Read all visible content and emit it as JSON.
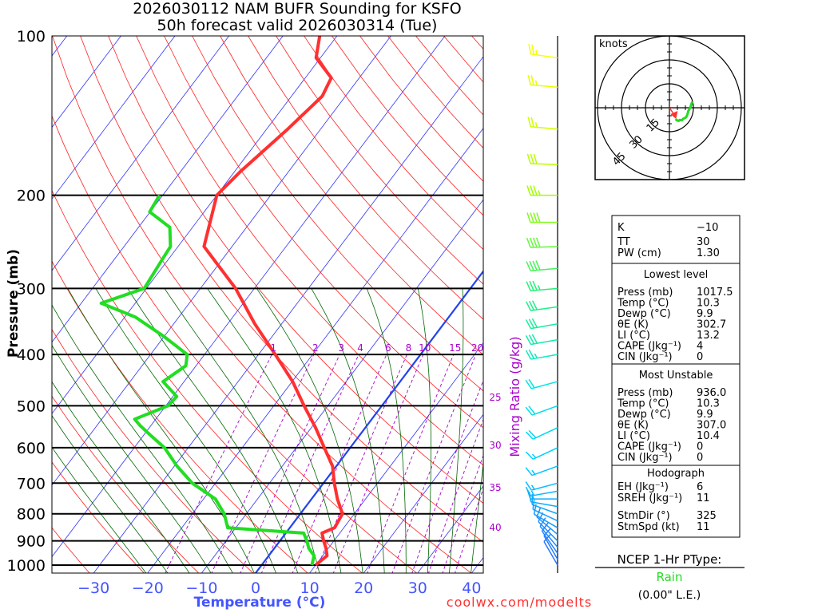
{
  "title": {
    "line1": "2026030112 NAM BUFR Sounding for KSFO",
    "line2": "50h forecast valid 2026030314 (Tue)"
  },
  "credit": "coolwx.com/modelts",
  "colors": {
    "temperature": "#ff3030",
    "dewpoint": "#22dd22",
    "isotherm": "#3030ff",
    "freezing": "#2244ee",
    "dry_adiabat": "#ff2020",
    "moist_adiabat": "#006600",
    "mixing_ratio": "#aa00cc",
    "axis_blue": "#4455ff"
  },
  "chart_data": {
    "type": "skew-t",
    "title": "2026030112 NAM BUFR Sounding for KSFO - 50h forecast valid 2026030314 (Tue)",
    "xlabel": "Temperature (°C)",
    "ylabel": "Pressure (mb)",
    "mixing_ratio_label": "Mixing Ratio (g/kg)",
    "pressure_ticks": [
      "100",
      "200",
      "300",
      "400",
      "500",
      "600",
      "700",
      "800",
      "900",
      "1000"
    ],
    "temperature_ticks": [
      "−30",
      "−20",
      "−10",
      "0",
      "10",
      "20",
      "30",
      "40"
    ],
    "temperature_tick_values": [
      -30,
      -20,
      -10,
      0,
      10,
      20,
      30,
      40
    ],
    "xlim": [
      -38,
      42
    ],
    "ylim": [
      1036,
      100
    ],
    "mixing_ratio_lines": [
      1,
      2,
      3,
      4,
      6,
      8,
      10,
      15,
      20,
      25,
      30,
      35,
      40
    ],
    "mixing_ratio_labels": [
      "1",
      "2",
      "3",
      "4",
      "6",
      "8",
      "10",
      "15",
      "20",
      "25",
      "30",
      "35",
      "40"
    ],
    "temperature_profile": {
      "pressure": [
        1000,
        960,
        930,
        900,
        870,
        850,
        800,
        750,
        700,
        650,
        600,
        550,
        500,
        450,
        400,
        350,
        300,
        250,
        200,
        180,
        150,
        130,
        120,
        110,
        100
      ],
      "temperature": [
        10.0,
        10.8,
        9.6,
        8.1,
        6.7,
        8.3,
        7.8,
        4.8,
        2.0,
        -0.7,
        -4.8,
        -9.2,
        -14.4,
        -19.9,
        -26.9,
        -35.0,
        -43.5,
        -55.2,
        -60.0,
        -58.9,
        -56.1,
        -54.3,
        -55.2,
        -60.8,
        -63.2
      ]
    },
    "dewpoint_profile": {
      "pressure": [
        1000,
        960,
        930,
        900,
        870,
        850,
        800,
        750,
        700,
        650,
        600,
        570,
        545,
        530,
        500,
        480,
        450,
        420,
        400,
        370,
        340,
        320,
        300,
        270,
        250,
        230,
        215,
        200
      ],
      "dewpoint": [
        9.3,
        8.4,
        6.4,
        5.0,
        3.3,
        -11.5,
        -14.1,
        -17.8,
        -24.3,
        -29.5,
        -34.4,
        -38.5,
        -42.0,
        -43.9,
        -39.6,
        -39.3,
        -43.9,
        -41.9,
        -43.2,
        -50.0,
        -58.0,
        -66.3,
        -60.4,
        -61.0,
        -61.4,
        -64.2,
        -70.1,
        -70.6
      ]
    },
    "freezing_isotherm_c": 0,
    "winds": {
      "pressure": [
        1000,
        975,
        950,
        925,
        900,
        875,
        850,
        825,
        800,
        775,
        750,
        725,
        700,
        650,
        600,
        550,
        500,
        450,
        400,
        375,
        350,
        325,
        300,
        275,
        250,
        225,
        200,
        175,
        150,
        125,
        110
      ],
      "direction": [
        330,
        330,
        325,
        320,
        315,
        310,
        300,
        295,
        290,
        280,
        270,
        260,
        255,
        250,
        245,
        245,
        250,
        255,
        260,
        260,
        260,
        262,
        265,
        265,
        268,
        270,
        270,
        272,
        275,
        275,
        278
      ],
      "speed": [
        8,
        9,
        10,
        10,
        11,
        11,
        12,
        12,
        12,
        12,
        13,
        14,
        15,
        16,
        17,
        18,
        20,
        22,
        25,
        28,
        30,
        32,
        35,
        38,
        40,
        40,
        35,
        30,
        25,
        25,
        25
      ]
    }
  },
  "hodograph": {
    "unit_label": "knots",
    "ring_labels": [
      "15",
      "30",
      "45"
    ],
    "ring_values": [
      15,
      30,
      45
    ]
  },
  "stats": {
    "indices": [
      {
        "label": "K",
        "value": "−10"
      },
      {
        "label": "TT",
        "value": "30"
      },
      {
        "label": "PW (cm)",
        "value": "1.30"
      }
    ],
    "lowest_level": {
      "title": "Lowest level",
      "rows": [
        {
          "label": "Press (mb)",
          "value": "1017.5"
        },
        {
          "label": "Temp (°C)",
          "value": "10.3"
        },
        {
          "label": "Dewp (°C)",
          "value": "9.9"
        },
        {
          "label": "θE (K)",
          "value": "302.7"
        },
        {
          "label": "LI (°C)",
          "value": "13.2"
        },
        {
          "label": "CAPE (Jkg⁻¹)",
          "value": "4"
        },
        {
          "label": "CIN (Jkg⁻¹)",
          "value": "0"
        }
      ]
    },
    "most_unstable": {
      "title": "Most Unstable",
      "rows": [
        {
          "label": "Press (mb)",
          "value": "936.0"
        },
        {
          "label": "Temp (°C)",
          "value": "10.3"
        },
        {
          "label": "Dewp (°C)",
          "value": "9.9"
        },
        {
          "label": "θE (K)",
          "value": "307.0"
        },
        {
          "label": "LI (°C)",
          "value": "10.4"
        },
        {
          "label": "CAPE (Jkg⁻¹)",
          "value": "0"
        },
        {
          "label": "CIN (Jkg⁻¹)",
          "value": "0"
        }
      ]
    },
    "hodograph": {
      "title": "Hodograph",
      "rows": [
        {
          "label": "EH (Jkg⁻¹)",
          "value": "6"
        },
        {
          "label": "SREH (Jkg⁻¹)",
          "value": "11"
        },
        {
          "label": "StmDir (°)",
          "value": "325"
        },
        {
          "label": "StmSpd (kt)",
          "value": "11"
        }
      ]
    }
  },
  "ptype": {
    "title": "NCEP 1-Hr PType:",
    "value": "Rain",
    "value_color": "#22dd22",
    "amount": "(0.00\" L.E.)"
  }
}
